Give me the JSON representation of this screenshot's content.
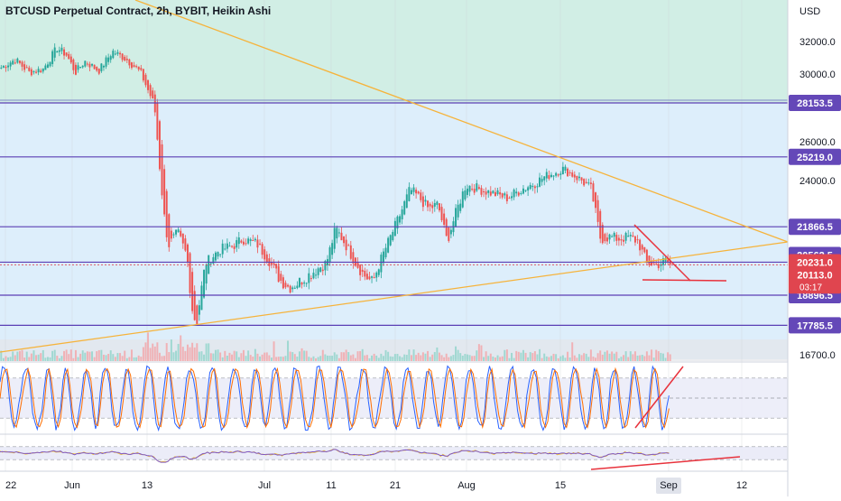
{
  "header": {
    "title": "BTCUSD Perpetual Contract, 2h, BYBIT, Heikin Ashi"
  },
  "colors": {
    "bull": "#26a69a",
    "bear": "#ef5350",
    "green_zone": "#d1eee5",
    "blue_zone": "#ddeefb",
    "level_line": "#5b3fb5",
    "trend_line": "#f6b33b",
    "red_line": "#e8323c",
    "label_bg": "#6448b8",
    "price_bg": "#e0454f",
    "stoch_k": "#2962ff",
    "stoch_d": "#ff6d00",
    "rsi": "#7e57c2"
  },
  "chart_data": [
    {
      "type": "candlestick",
      "axis_unit": "USD",
      "y_ticks": [
        32000.0,
        30000.0,
        26000.0,
        24000.0,
        18896.5,
        16700.0
      ],
      "ylim": [
        16500,
        34500
      ],
      "x_ticks": [
        "22",
        "Jun",
        "13",
        "Jul",
        "11",
        "21",
        "Aug",
        "15",
        "Sep",
        "12"
      ],
      "levels": [
        {
          "value": 28153.5,
          "label": "28153.5"
        },
        {
          "value": 25219.0,
          "label": "25219.0"
        },
        {
          "value": 21866.5,
          "label": "21866.5"
        },
        {
          "value": 20231.0,
          "label": "20231.0"
        },
        {
          "value": 18896.5,
          "label": "18896.5"
        },
        {
          "value": 17785.5,
          "label": "17785.5"
        }
      ],
      "marker_labels": [
        {
          "value": 20562.5,
          "label": "20562.5"
        }
      ],
      "current_price": {
        "value": 20113.0,
        "label": "20113.0",
        "countdown": "03:17"
      },
      "trend_lines": [
        {
          "name": "descending",
          "from": {
            "x": "May 24",
            "y": 34200
          },
          "to": {
            "x": "Sep 06",
            "y": 20800
          }
        },
        {
          "name": "ascending",
          "from": {
            "x": "May 22",
            "y": 16850
          },
          "to": {
            "x": "Sep 06",
            "y": 20800
          }
        }
      ],
      "close_path": [
        [
          0,
          30400
        ],
        [
          3,
          30900
        ],
        [
          6,
          30100
        ],
        [
          9,
          30300
        ],
        [
          12,
          31600
        ],
        [
          14,
          31200
        ],
        [
          16,
          30100
        ],
        [
          18,
          30800
        ],
        [
          21,
          30200
        ],
        [
          24,
          31400
        ],
        [
          27,
          30900
        ],
        [
          30,
          30100
        ],
        [
          33,
          28000
        ],
        [
          34,
          25000
        ],
        [
          35,
          22500
        ],
        [
          36,
          21000
        ],
        [
          38,
          21600
        ],
        [
          40,
          20500
        ],
        [
          41,
          18500
        ],
        [
          42,
          17800
        ],
        [
          44,
          20200
        ],
        [
          47,
          20800
        ],
        [
          50,
          21000
        ],
        [
          52,
          21300
        ],
        [
          55,
          21100
        ],
        [
          58,
          20200
        ],
        [
          60,
          19500
        ],
        [
          62,
          19200
        ],
        [
          64,
          19400
        ],
        [
          67,
          19800
        ],
        [
          70,
          20200
        ],
        [
          72,
          21800
        ],
        [
          74,
          21100
        ],
        [
          76,
          20300
        ],
        [
          78,
          19700
        ],
        [
          80,
          19400
        ],
        [
          82,
          20500
        ],
        [
          84,
          21500
        ],
        [
          86,
          22500
        ],
        [
          88,
          23600
        ],
        [
          90,
          23200
        ],
        [
          92,
          22700
        ],
        [
          94,
          22900
        ],
        [
          96,
          21200
        ],
        [
          98,
          22600
        ],
        [
          100,
          23800
        ],
        [
          103,
          23600
        ],
        [
          106,
          23400
        ],
        [
          109,
          23200
        ],
        [
          112,
          23600
        ],
        [
          115,
          23900
        ],
        [
          117,
          24200
        ],
        [
          119,
          24400
        ],
        [
          121,
          24600
        ],
        [
          123,
          24300
        ],
        [
          125,
          24000
        ],
        [
          127,
          23600
        ],
        [
          129,
          21300
        ],
        [
          131,
          21400
        ],
        [
          133,
          21300
        ],
        [
          135,
          21400
        ],
        [
          137,
          21200
        ],
        [
          139,
          20200
        ],
        [
          141,
          20100
        ],
        [
          143,
          20300
        ],
        [
          144,
          20113
        ]
      ],
      "volume_note": "volume bars"
    },
    {
      "type": "line",
      "name": "stochastic",
      "y_ticks": [
        100.0,
        50.0,
        0.0
      ],
      "bands": [
        80,
        20
      ],
      "ylim": [
        0,
        100
      ]
    },
    {
      "type": "line",
      "name": "rsi",
      "bands": [
        70,
        30
      ],
      "ylim": [
        0,
        100
      ]
    }
  ]
}
